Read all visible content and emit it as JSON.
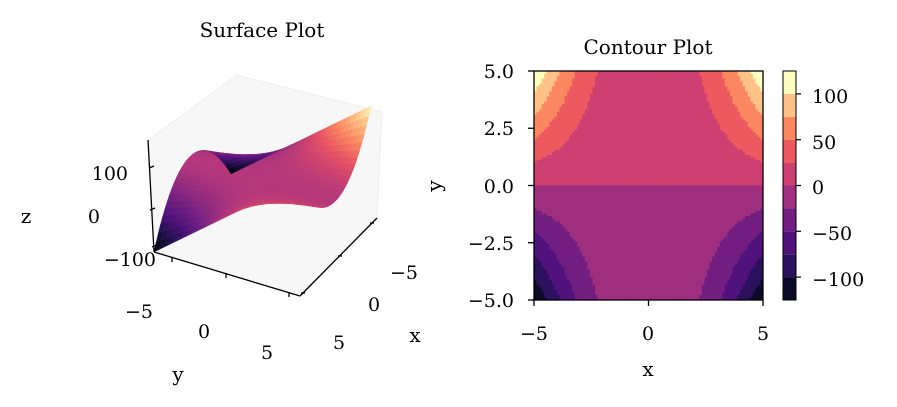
{
  "chart_data": [
    {
      "type": "surface",
      "title": "Surface Plot",
      "function": "z = x^2 * y (approx.)",
      "xlabel": "x",
      "ylabel": "y",
      "zlabel": "z",
      "xlim": [
        -5,
        5
      ],
      "ylim": [
        -5,
        5
      ],
      "zlim": [
        -125,
        125
      ],
      "x_ticks": [
        "−5",
        "0",
        "5"
      ],
      "y_ticks": [
        "−5",
        "0",
        "5"
      ],
      "z_ticks": [
        "100",
        "0",
        "−100"
      ],
      "colormap": "magma",
      "grid": false
    },
    {
      "type": "contour",
      "title": "Contour Plot",
      "xlabel": "x",
      "ylabel": "y",
      "xlim": [
        -5,
        5
      ],
      "ylim": [
        -5,
        5
      ],
      "x_ticks": [
        "−5",
        "0",
        "5"
      ],
      "y_ticks": [
        "5.0",
        "2.5",
        "0.0",
        "−2.5",
        "−5.0"
      ],
      "levels": [
        -125,
        -100,
        -75,
        -50,
        -25,
        0,
        25,
        50,
        75,
        100,
        125
      ],
      "level_colors": [
        "#0d0a29",
        "#2c115f",
        "#51127c",
        "#721f81",
        "#9f2f7f",
        "#cd4071",
        "#ec5a60",
        "#fb8761",
        "#fec287",
        "#fcfdbf"
      ],
      "colorbar": {
        "ticks": [
          "100",
          "50",
          "0",
          "−50",
          "−100"
        ],
        "values": [
          100,
          50,
          0,
          -50,
          -100
        ],
        "range": [
          -125,
          125
        ]
      }
    }
  ]
}
